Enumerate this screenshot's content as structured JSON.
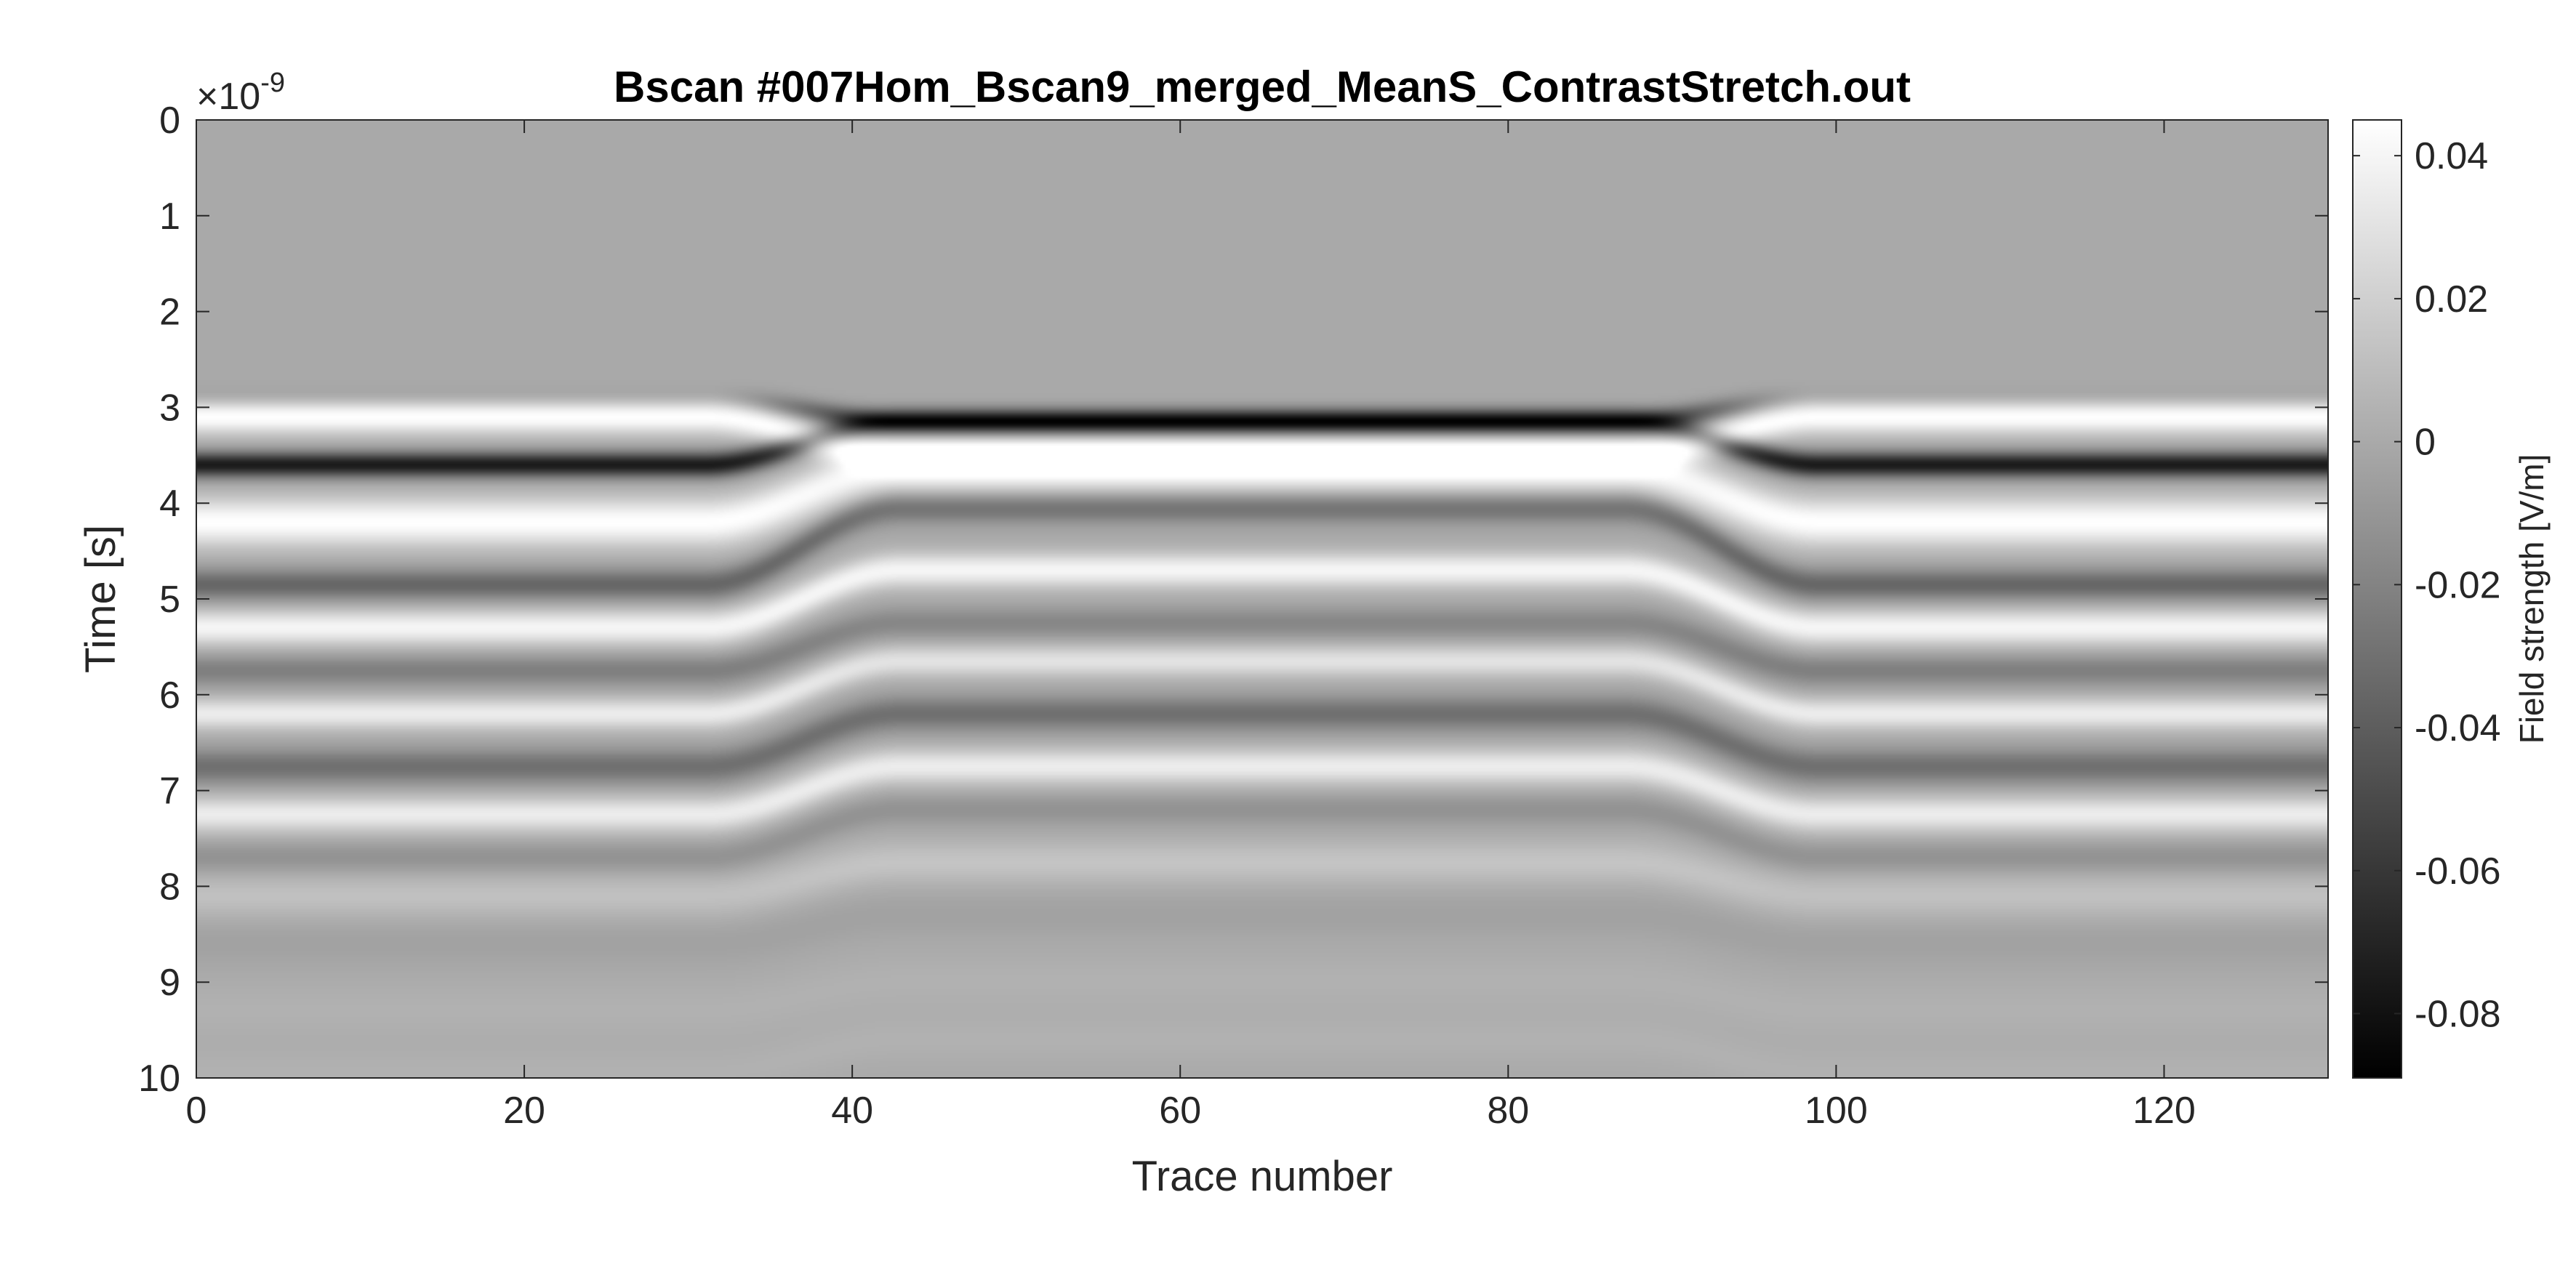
{
  "chart_data": {
    "type": "heatmap",
    "title": "Bscan #007Hom_Bscan9_merged_MeanS_ContrastStretch.out",
    "xlabel": "Trace number",
    "ylabel": "Time [s]",
    "y_exponent": "×10",
    "y_exponent_power": "-9",
    "xlim": [
      0,
      130
    ],
    "ylim": [
      0,
      10
    ],
    "y_reversed": true,
    "x_ticks": [
      "0",
      "20",
      "40",
      "60",
      "80",
      "100",
      "120"
    ],
    "y_ticks": [
      "0",
      "1",
      "2",
      "3",
      "4",
      "5",
      "6",
      "7",
      "8",
      "9",
      "10"
    ],
    "colormap": "gray",
    "colorbar": {
      "label": "Field strength [V/m]",
      "range": [
        -0.089,
        0.045
      ],
      "ticks": [
        "0.04",
        "0.02",
        "0",
        "-0.02",
        "-0.04",
        "-0.06",
        "-0.08"
      ]
    },
    "background_level": 0,
    "reflection_bands": [
      {
        "center_time_edge": 2.9,
        "center_time_mid": 3.15,
        "amplitude_edge": -0.008,
        "amplitude_mid": -0.055,
        "width": 0.12
      },
      {
        "center_time_edge": 3.1,
        "center_time_mid": 3.5,
        "amplitude_edge": 0.045,
        "amplitude_mid": 0.045,
        "width": 0.18
      },
      {
        "center_time_edge": 3.6,
        "center_time_mid": 3.15,
        "amplitude_edge": -0.075,
        "amplitude_mid": -0.035,
        "width": 0.13
      },
      {
        "center_time_edge": 4.2,
        "center_time_mid": 3.65,
        "amplitude_edge": 0.045,
        "amplitude_mid": 0.04,
        "width": 0.25
      },
      {
        "center_time_edge": 4.85,
        "center_time_mid": 4.05,
        "amplitude_edge": -0.035,
        "amplitude_mid": -0.03,
        "width": 0.16
      },
      {
        "center_time_edge": 5.3,
        "center_time_mid": 4.7,
        "amplitude_edge": 0.04,
        "amplitude_mid": 0.04,
        "width": 0.18
      },
      {
        "center_time_edge": 5.75,
        "center_time_mid": 5.25,
        "amplitude_edge": -0.022,
        "amplitude_mid": -0.018,
        "width": 0.16
      },
      {
        "center_time_edge": 6.2,
        "center_time_mid": 5.65,
        "amplitude_edge": 0.035,
        "amplitude_mid": 0.03,
        "width": 0.16
      },
      {
        "center_time_edge": 6.75,
        "center_time_mid": 6.2,
        "amplitude_edge": -0.03,
        "amplitude_mid": -0.03,
        "width": 0.18
      },
      {
        "center_time_edge": 7.25,
        "center_time_mid": 6.75,
        "amplitude_edge": 0.035,
        "amplitude_mid": 0.035,
        "width": 0.18
      },
      {
        "center_time_edge": 7.7,
        "center_time_mid": 7.2,
        "amplitude_edge": -0.012,
        "amplitude_mid": -0.012,
        "width": 0.16
      },
      {
        "center_time_edge": 8.1,
        "center_time_mid": 7.75,
        "amplitude_edge": 0.012,
        "amplitude_mid": 0.014,
        "width": 0.22
      },
      {
        "center_time_edge": 8.6,
        "center_time_mid": 8.3,
        "amplitude_edge": -0.004,
        "amplitude_mid": -0.004,
        "width": 0.22
      },
      {
        "center_time_edge": 9.3,
        "center_time_mid": 9.0,
        "amplitude_edge": 0.004,
        "amplitude_mid": 0.004,
        "width": 0.3
      },
      {
        "center_time_edge": 9.95,
        "center_time_mid": 9.6,
        "amplitude_edge": 0.004,
        "amplitude_mid": 0.004,
        "width": 0.25
      }
    ],
    "hyperbola_apex_trace": 65,
    "hyperbola_flat_halfwidth": 22,
    "hyperbola_transition_width": 12
  },
  "colors": {
    "axis": "#262626",
    "title": "#000000",
    "background": "#ffffff"
  }
}
